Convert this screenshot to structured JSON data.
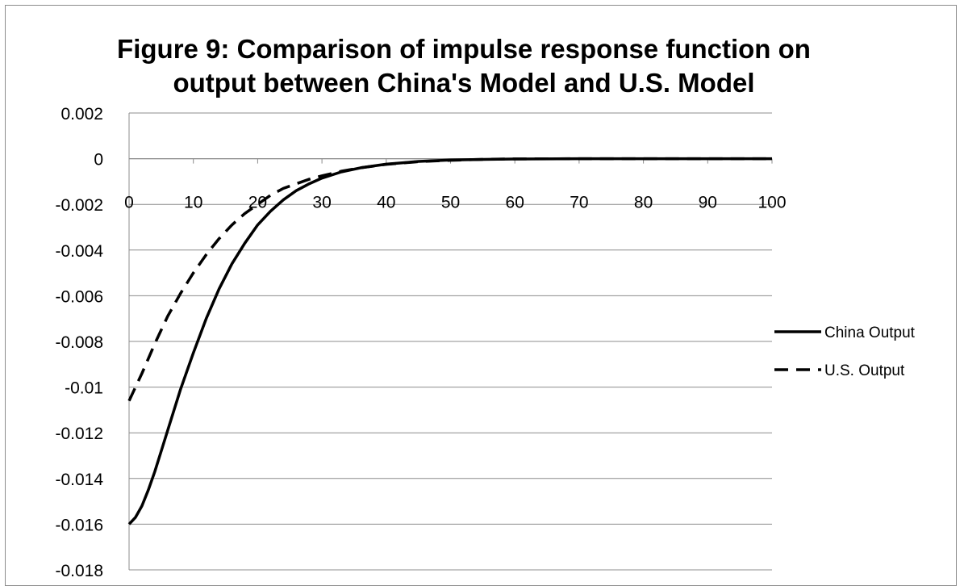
{
  "chart_data": {
    "type": "line",
    "title": "Figure 9: Comparison of impulse response function on output between China's Model and U.S. Model",
    "xlabel": "",
    "ylabel": "",
    "xlim": [
      0,
      100
    ],
    "ylim": [
      -0.018,
      0.002
    ],
    "x_ticks": [
      "0",
      "10",
      "20",
      "30",
      "40",
      "50",
      "60",
      "70",
      "80",
      "90",
      "100"
    ],
    "y_ticks": [
      "0.002",
      "0",
      "-0.002",
      "-0.004",
      "-0.006",
      "-0.008",
      "-0.01",
      "-0.012",
      "-0.014",
      "-0.016",
      "-0.018"
    ],
    "grid": "horizontal",
    "legend_position": "right",
    "series": [
      {
        "name": "China Output",
        "style": "solid",
        "color": "#000000",
        "x": [
          0,
          1,
          2,
          3,
          4,
          5,
          6,
          7,
          8,
          9,
          10,
          12,
          14,
          16,
          18,
          20,
          22,
          24,
          26,
          28,
          30,
          33,
          36,
          40,
          45,
          50,
          55,
          60,
          70,
          80,
          90,
          100
        ],
        "y": [
          -0.016,
          -0.0157,
          -0.0152,
          -0.0145,
          -0.0137,
          -0.0128,
          -0.0119,
          -0.011,
          -0.0101,
          -0.0093,
          -0.0085,
          -0.007,
          -0.0057,
          -0.0046,
          -0.0037,
          -0.0029,
          -0.0023,
          -0.0018,
          -0.0014,
          -0.0011,
          -0.00085,
          -0.00058,
          -0.0004,
          -0.00024,
          -0.00012,
          -6e-05,
          -3e-05,
          -1.5e-05,
          0,
          0,
          0,
          0
        ]
      },
      {
        "name": "U.S. Output",
        "style": "dashed",
        "color": "#000000",
        "x": [
          0,
          2,
          4,
          6,
          8,
          10,
          12,
          14,
          16,
          18,
          20,
          22,
          24,
          26,
          28,
          30,
          33,
          36,
          40,
          45,
          50,
          55,
          60,
          70,
          80,
          90,
          100
        ],
        "y": [
          -0.0106,
          -0.0094,
          -0.0081,
          -0.0069,
          -0.0059,
          -0.005,
          -0.0042,
          -0.0035,
          -0.0029,
          -0.0024,
          -0.002,
          -0.0016,
          -0.0013,
          -0.0011,
          -0.0009,
          -0.00075,
          -0.00055,
          -0.0004,
          -0.00025,
          -0.00013,
          -7e-05,
          -3e-05,
          -1e-05,
          0,
          0,
          0,
          0
        ]
      }
    ]
  }
}
